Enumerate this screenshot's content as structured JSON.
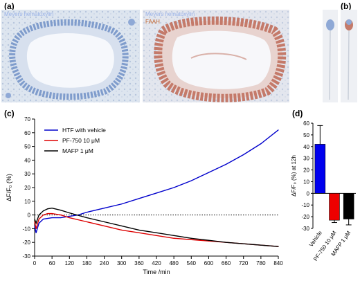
{
  "panels": {
    "a": "(a)",
    "b": "(b)",
    "c": "(c)",
    "d": "(d)"
  },
  "micrographs": {
    "left_label": "Meyers hematoxylin",
    "right_label1": "Meyers hematoxylin",
    "right_label2": "FAAH",
    "colors": {
      "hematoxylin_label": "#9bb3e8",
      "faah_label": "#c0622b",
      "stain_blue": "#8fa9d6",
      "stain_brown": "#c47a6a"
    }
  },
  "chart_data": [
    {
      "type": "line",
      "xlabel": "Time /min",
      "ylabel": "ΔF/F₀ (%)",
      "xlim": [
        0,
        840
      ],
      "ylim": [
        -30,
        70
      ],
      "xticks": [
        "0",
        "60",
        "120",
        "180",
        "240",
        "300",
        "360",
        "420",
        "480",
        "540",
        "600",
        "660",
        "720",
        "780",
        "840"
      ],
      "yticks": [
        "-30",
        "-20",
        "-10",
        "0",
        "10",
        "20",
        "30",
        "40",
        "50",
        "60",
        "70"
      ],
      "legend_position": "top-left",
      "zero_line": "dotted",
      "series": [
        {
          "name": "HTF with vehicle",
          "color": "#0000cc",
          "x": [
            0,
            5,
            15,
            30,
            60,
            90,
            120,
            150,
            180,
            240,
            300,
            360,
            420,
            480,
            540,
            600,
            660,
            720,
            780,
            840
          ],
          "y": [
            -8,
            -13,
            -6,
            -3,
            -2,
            -2,
            -1,
            0,
            2,
            5,
            8,
            12,
            16,
            20,
            25,
            31,
            37,
            44,
            52,
            62
          ]
        },
        {
          "name": "PF-750 10 μM",
          "color": "#dd0000",
          "x": [
            0,
            5,
            15,
            30,
            45,
            60,
            90,
            120,
            180,
            240,
            300,
            360,
            420,
            480,
            540,
            600,
            660,
            720,
            780,
            840
          ],
          "y": [
            -5,
            -10,
            -3,
            0,
            1,
            1,
            0,
            -2,
            -5,
            -8,
            -11,
            -13,
            -15,
            -17,
            -18,
            -19,
            -20,
            -21,
            -22,
            -23
          ]
        },
        {
          "name": "MAFP 1 μM",
          "color": "#000000",
          "x": [
            0,
            5,
            15,
            30,
            45,
            60,
            90,
            120,
            180,
            240,
            300,
            360,
            420,
            480,
            540,
            600,
            660,
            720,
            780,
            840
          ],
          "y": [
            -3,
            -6,
            0,
            3,
            4.5,
            5,
            3.5,
            1.5,
            -2,
            -5,
            -8,
            -11,
            -13,
            -15,
            -17,
            -18.5,
            -20,
            -21,
            -22,
            -23
          ]
        }
      ]
    },
    {
      "type": "bar",
      "ylabel": "ΔF/F₀ (%) at 12h",
      "ylim": [
        -30,
        60
      ],
      "yticks": [
        "-30",
        "-20",
        "-10",
        "0",
        "10",
        "20",
        "30",
        "40",
        "50",
        "60"
      ],
      "categories": [
        "Vehicle",
        "PF-750 10 μM",
        "MAFP 1 μM"
      ],
      "values": [
        42,
        -23,
        -22
      ],
      "errors": [
        16,
        2,
        5
      ],
      "colors": [
        "#0000ee",
        "#ee0000",
        "#000000"
      ]
    }
  ]
}
